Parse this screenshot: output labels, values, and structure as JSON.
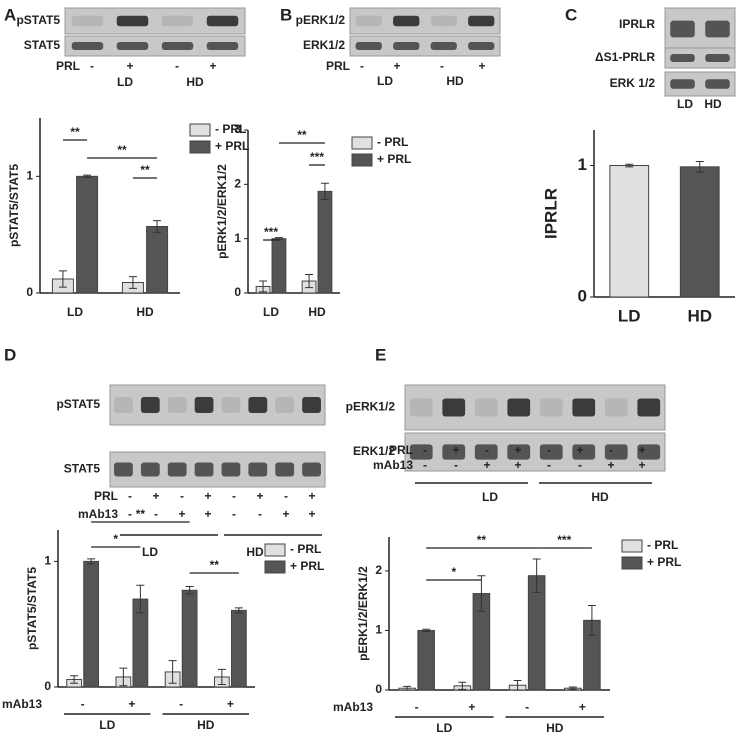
{
  "panels": [
    "A",
    "B",
    "C",
    "D",
    "E"
  ],
  "blots": [
    {
      "rows": [
        "pSTAT5",
        "STAT5"
      ],
      "treatments": [
        {
          "name": "PRL",
          "signs": [
            "-",
            "+",
            "-",
            "+"
          ]
        }
      ],
      "groups": [
        "LD",
        "HD"
      ]
    },
    {
      "rows": [
        "pERK1/2",
        "ERK1/2"
      ],
      "treatments": [
        {
          "name": "PRL",
          "signs": [
            "-",
            "+",
            "-",
            "+"
          ]
        }
      ],
      "groups": [
        "LD",
        "HD"
      ]
    },
    {
      "rows": [
        "IPRLR",
        "ΔS1-PRLR",
        "ERK 1/2"
      ],
      "groups": [
        "LD",
        "HD"
      ]
    },
    {
      "rows": [
        "pSTAT5",
        "STAT5"
      ],
      "treatments": [
        {
          "name": "PRL",
          "signs": [
            "-",
            "+",
            "-",
            "+",
            "-",
            "+",
            "-",
            "+"
          ]
        },
        {
          "name": "mAb13",
          "signs": [
            "-",
            "-",
            "+",
            "+",
            "-",
            "-",
            "+",
            "+"
          ]
        }
      ],
      "groups": [
        "LD",
        "HD"
      ]
    },
    {
      "rows": [
        "pERK1/2",
        "ERK1/2"
      ],
      "treatments": [
        {
          "name": "PRL",
          "signs": [
            "-",
            "+",
            "-",
            "+",
            "-",
            "+",
            "-",
            "+"
          ]
        },
        {
          "name": "mAb13",
          "signs": [
            "-",
            "-",
            "+",
            "+",
            "-",
            "-",
            "+",
            "+"
          ]
        }
      ],
      "groups": [
        "LD",
        "HD"
      ]
    }
  ],
  "chart_data": [
    {
      "type": "bar",
      "y_label": "pSTAT5/STAT5",
      "categories": [
        "LD",
        "HD"
      ],
      "ylim": [
        0,
        1.5
      ],
      "yticks": [
        0,
        1
      ],
      "series": [
        {
          "name": "- PRL",
          "color": "#e0e0e0",
          "values": [
            0.12,
            0.09
          ],
          "errors": [
            0.07,
            0.05
          ]
        },
        {
          "name": "+ PRL",
          "color": "#555555",
          "values": [
            1.0,
            0.57
          ],
          "errors": [
            0.01,
            0.05
          ]
        }
      ],
      "annotations": [
        "**",
        "**",
        "**"
      ]
    },
    {
      "type": "bar",
      "y_label": "pERK1/2/ERK1/2",
      "categories": [
        "LD",
        "HD"
      ],
      "ylim": [
        0,
        3
      ],
      "yticks": [
        0,
        1,
        2,
        3
      ],
      "series": [
        {
          "name": "- PRL",
          "color": "#e0e0e0",
          "values": [
            0.12,
            0.22
          ],
          "errors": [
            0.1,
            0.12
          ]
        },
        {
          "name": "+ PRL",
          "color": "#555555",
          "values": [
            1.0,
            1.87
          ],
          "errors": [
            0.02,
            0.15
          ]
        }
      ],
      "annotations": [
        "***",
        "**",
        "***"
      ]
    },
    {
      "type": "bar",
      "y_label": "IPRLR",
      "categories": [
        "LD",
        "HD"
      ],
      "ylim": [
        0,
        1.27
      ],
      "yticks": [
        0,
        1
      ],
      "series": [
        {
          "colors": [
            "#e0e0e0",
            "#555555"
          ],
          "values": [
            1.0,
            0.99
          ],
          "errors": [
            0.01,
            0.04
          ]
        }
      ]
    },
    {
      "type": "bar",
      "y_label": "pSTAT5/STAT5",
      "x_label": "mAb13",
      "categories": [
        "-",
        "+",
        "-",
        "+"
      ],
      "groups": [
        "LD",
        "HD"
      ],
      "ylim": [
        0,
        1.25
      ],
      "yticks": [
        0,
        1
      ],
      "series": [
        {
          "name": "- PRL",
          "color": "#e0e0e0",
          "values": [
            0.06,
            0.08,
            0.12,
            0.08
          ],
          "errors": [
            0.03,
            0.07,
            0.09,
            0.06
          ]
        },
        {
          "name": "+ PRL",
          "color": "#555555",
          "values": [
            1.0,
            0.7,
            0.77,
            0.61
          ],
          "errors": [
            0.02,
            0.11,
            0.03,
            0.02
          ]
        }
      ],
      "annotations": [
        "*",
        "**",
        "**"
      ]
    },
    {
      "type": "bar",
      "y_label": "pERK1/2/ERK1/2",
      "x_label": "mAb13",
      "categories": [
        "-",
        "+",
        "-",
        "+"
      ],
      "groups": [
        "LD",
        "HD"
      ],
      "ylim": [
        0,
        2.57
      ],
      "yticks": [
        0,
        1,
        2
      ],
      "series": [
        {
          "name": "- PRL",
          "color": "#e0e0e0",
          "values": [
            0.03,
            0.07,
            0.08,
            0.03
          ],
          "errors": [
            0.03,
            0.06,
            0.08,
            0.02
          ]
        },
        {
          "name": "+ PRL",
          "color": "#555555",
          "values": [
            1.0,
            1.62,
            1.92,
            1.17
          ],
          "errors": [
            0.02,
            0.3,
            0.28,
            0.25
          ]
        }
      ],
      "annotations": [
        "*",
        "**",
        "***"
      ]
    }
  ]
}
